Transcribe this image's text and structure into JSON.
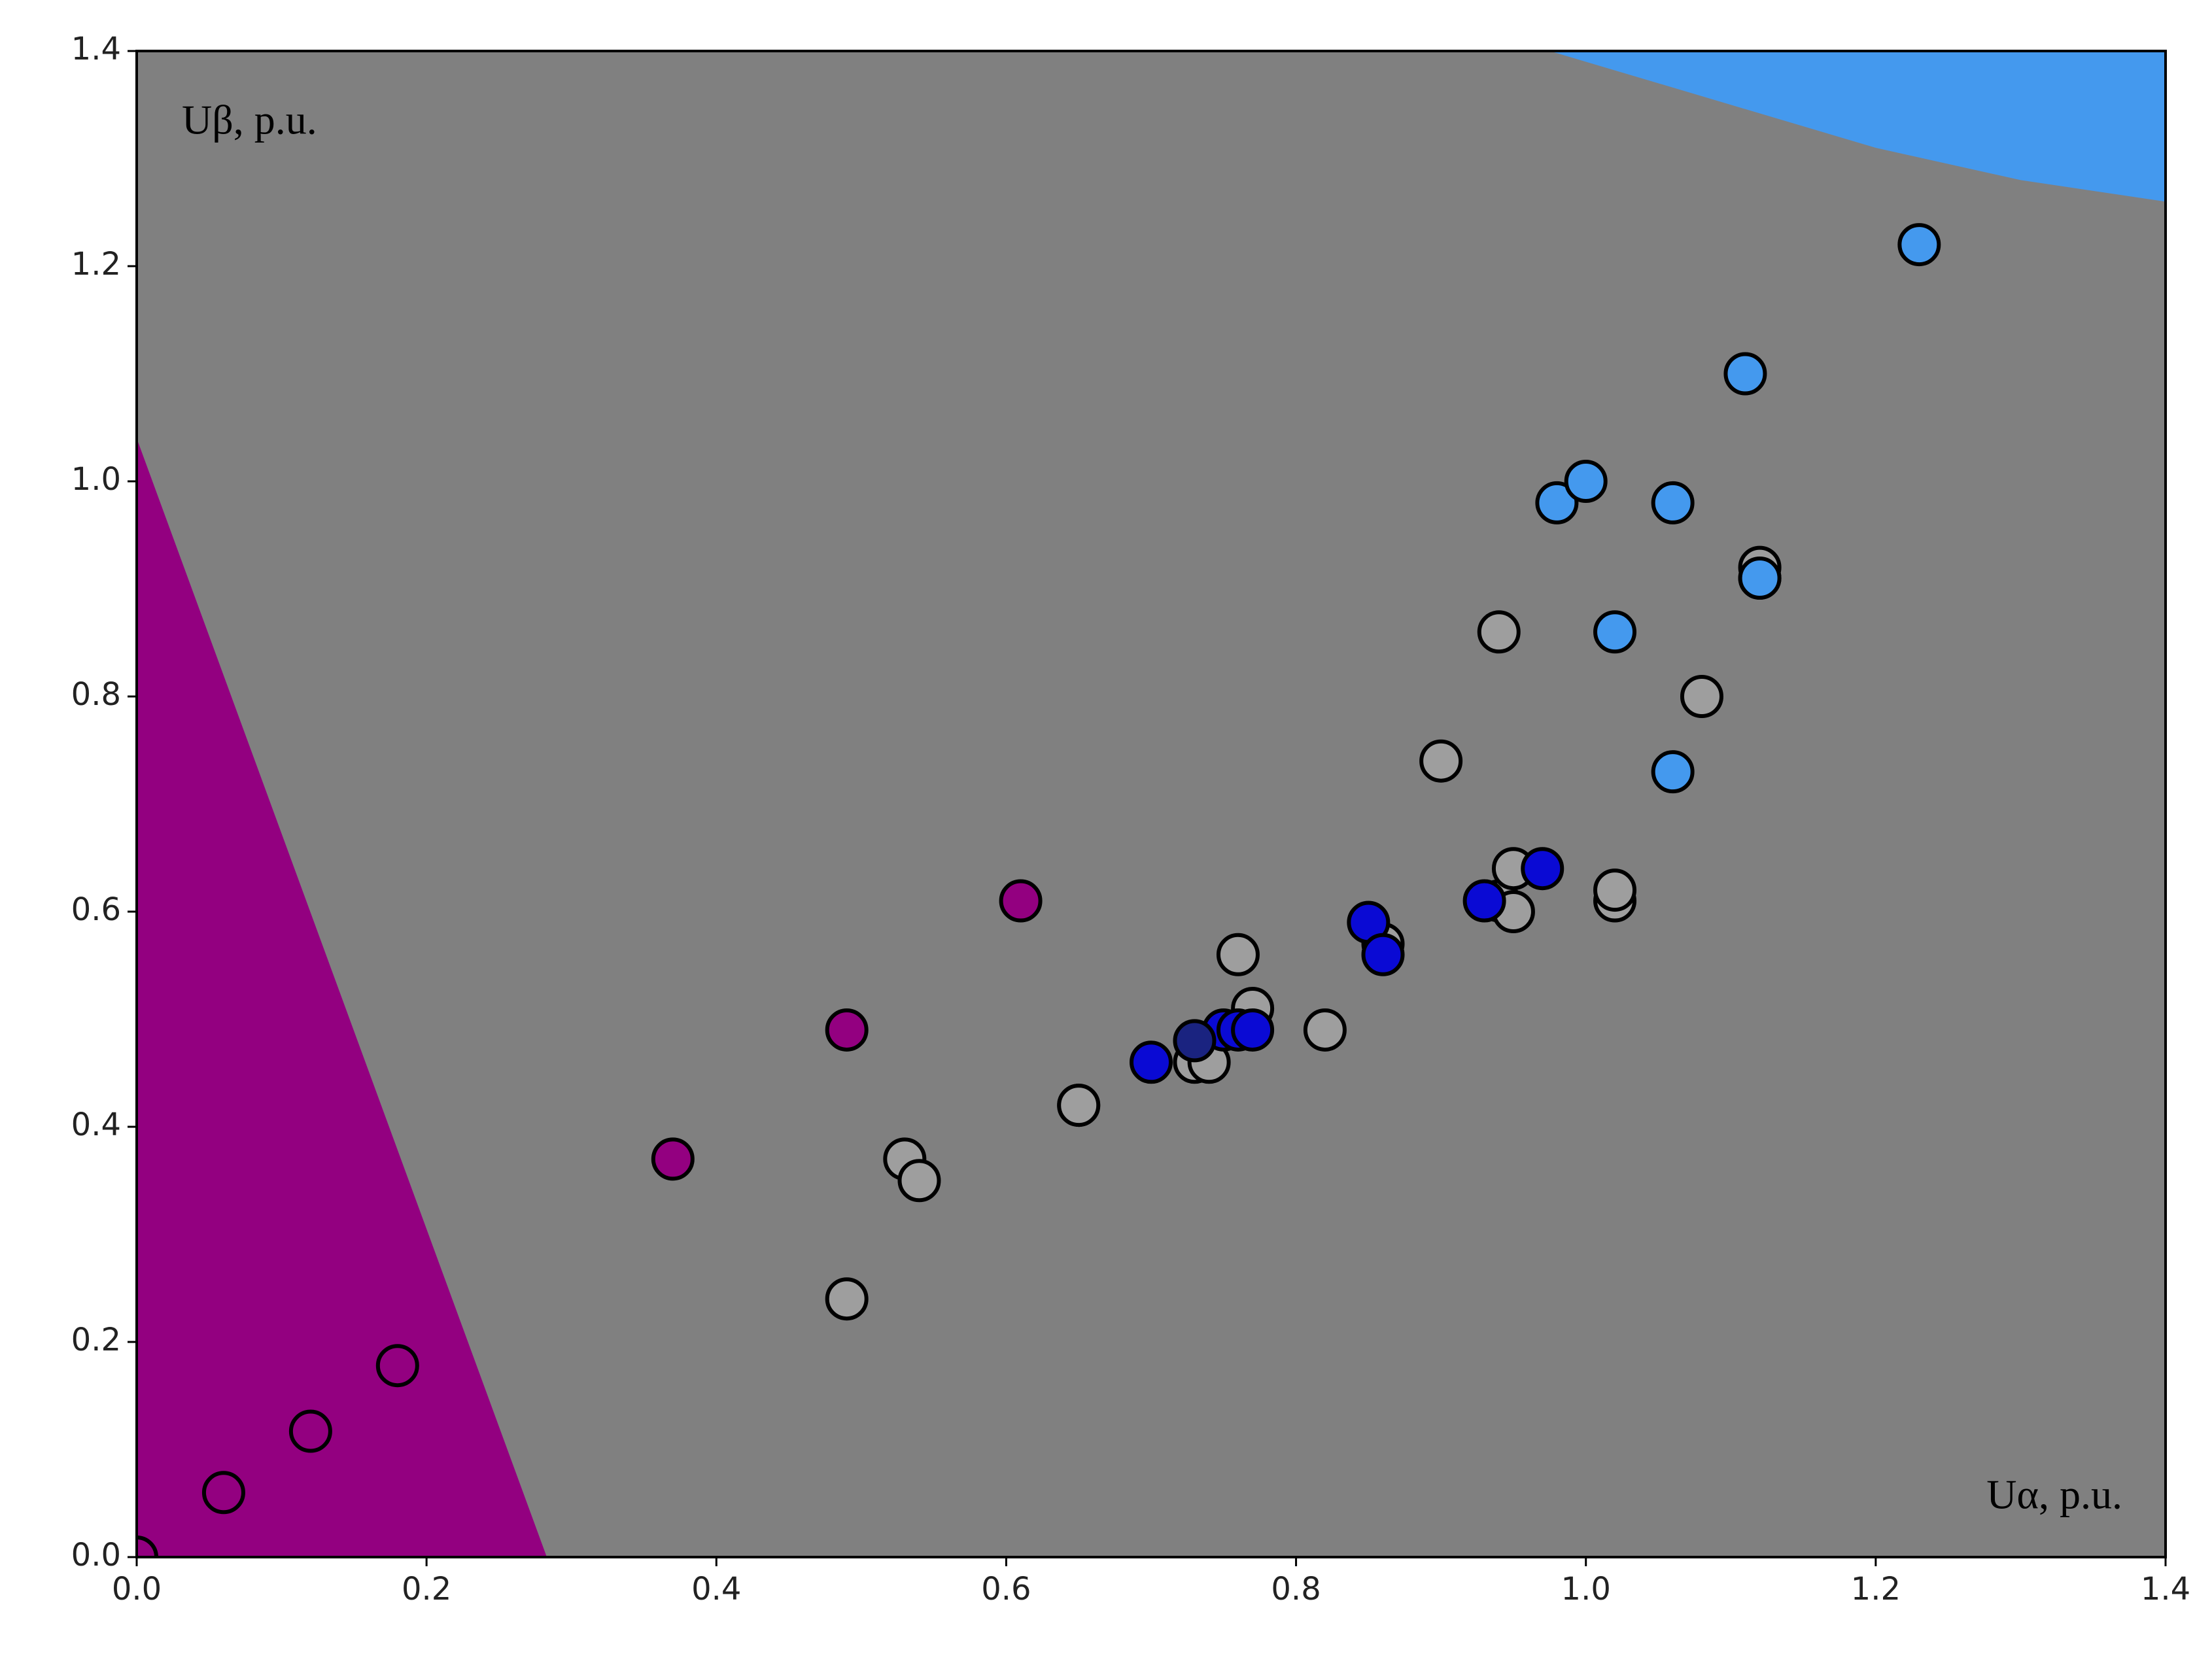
{
  "chart_data": {
    "type": "scatter",
    "x_axis_label": "Uα, p.u.",
    "y_axis_label": "Uβ, p.u.",
    "background": "#808080",
    "xlim": [
      0,
      1.4
    ],
    "ylim": [
      0,
      1.4
    ],
    "xticks": [
      {
        "value": 0,
        "label": "0.0"
      },
      0.2,
      0.4,
      0.6,
      0.8,
      {
        "value": 1,
        "label": "1.0"
      },
      1.2,
      1.4
    ],
    "yticks": [
      {
        "value": 0,
        "label": "0.0"
      },
      0.2,
      0.4,
      0.6,
      0.8,
      {
        "value": 1,
        "label": "1.0"
      },
      1.2,
      1.4
    ],
    "regions": [
      {
        "color": "#930080",
        "x": [
          0,
          0,
          0.283
        ],
        "y": [
          0,
          1.04,
          0
        ]
      },
      {
        "color": "#4499ee",
        "x": [
          0.975,
          1.1,
          1.2,
          1.3,
          1.4,
          1.4
        ],
        "y": [
          1.4,
          1.35,
          1.31,
          1.28,
          1.26,
          1.4
        ]
      }
    ],
    "series": [
      {
        "color": "#930080",
        "x": [
          0,
          0.06,
          0.12,
          0.18,
          0.37,
          0.49,
          0.61
        ],
        "y": [
          0,
          0.06,
          0.117,
          0.178,
          0.37,
          0.49,
          0.61
        ]
      },
      {
        "color": "#9e9e9e",
        "x": [
          0.49,
          0.53,
          0.54,
          0.65,
          0.65,
          0.73,
          0.74,
          0.76,
          0.77,
          0.82,
          0.86,
          0.9,
          0.94,
          0.94,
          0.95,
          0.95,
          1.02,
          1.02,
          1.08,
          1.12,
          1.12
        ],
        "y": [
          0.24,
          0.37,
          0.35,
          0.42,
          0.42,
          0.46,
          0.46,
          0.56,
          0.51,
          0.49,
          0.57,
          0.74,
          0.86,
          0.61,
          0.64,
          0.6,
          0.61,
          0.62,
          0.8,
          0.91,
          0.92
        ]
      },
      {
        "color": "#0a0ad4",
        "x": [
          0.7,
          0.75,
          0.76,
          0.77,
          0.85,
          0.86,
          0.93,
          0.97
        ],
        "y": [
          0.46,
          0.49,
          0.49,
          0.49,
          0.59,
          0.56,
          0.61,
          0.64
        ]
      },
      {
        "color": "#1a2380",
        "x": [
          0.73
        ],
        "y": [
          0.48
        ]
      },
      {
        "color": "#4499ee",
        "x": [
          0.98,
          1.0,
          1.02,
          1.06,
          1.06,
          1.11,
          1.12,
          1.23
        ],
        "y": [
          0.98,
          1.0,
          0.86,
          0.98,
          0.73,
          1.1,
          0.91,
          1.22
        ]
      }
    ]
  }
}
